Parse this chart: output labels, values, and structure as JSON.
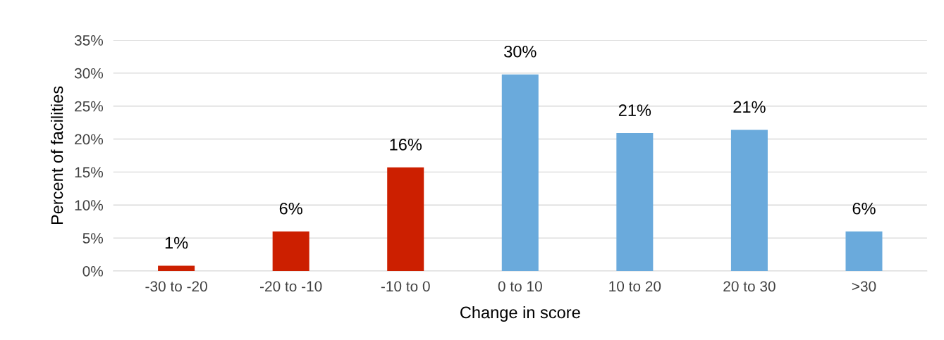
{
  "chart_data": {
    "type": "bar",
    "xlabel": "Change in score",
    "ylabel": "Percent of facilities",
    "categories": [
      "-30 to -20",
      "-20 to -10",
      "-10 to 0",
      "0 to 10",
      "10 to 20",
      "20 to 30",
      ">30"
    ],
    "values": [
      0.8,
      6.0,
      15.7,
      29.8,
      20.9,
      21.4,
      6.0
    ],
    "colors": [
      "#cc1f00",
      "#cc1f00",
      "#cc1f00",
      "#6aaadc",
      "#6aaadc",
      "#6aaadc",
      "#6aaadc"
    ],
    "value_labels": [
      "1%",
      "6%",
      "16%",
      "30%",
      "21%",
      "21%",
      "6%"
    ],
    "ylim": [
      0,
      35
    ],
    "yticks": [
      {
        "value": 0,
        "label": "0%"
      },
      {
        "value": 5,
        "label": "5%"
      },
      {
        "value": 10,
        "label": "10%"
      },
      {
        "value": 15,
        "label": "15%"
      },
      {
        "value": 20,
        "label": "20%"
      },
      {
        "value": 25,
        "label": "25%"
      },
      {
        "value": 30,
        "label": "30%"
      },
      {
        "value": 35,
        "label": "35%"
      }
    ],
    "grid": "y"
  }
}
